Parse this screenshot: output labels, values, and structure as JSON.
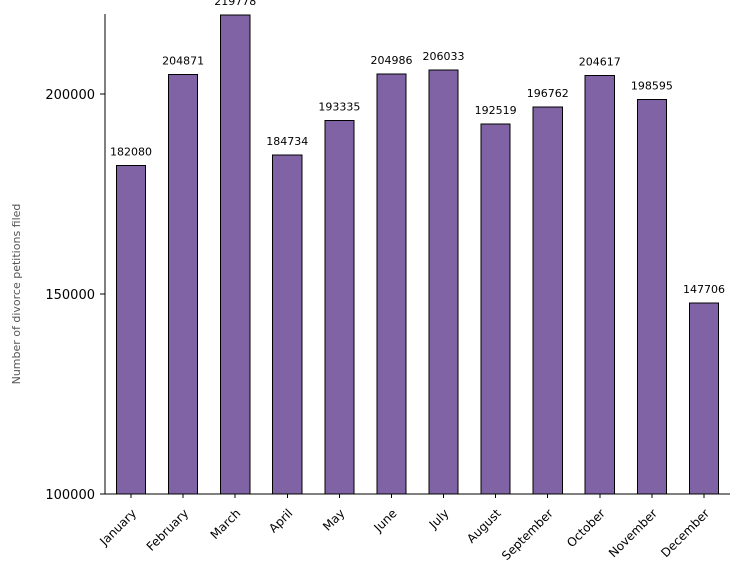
{
  "chart_data": {
    "type": "bar",
    "title": "",
    "xlabel": "",
    "ylabel": "Number of divorce petitions filed",
    "categories": [
      "January",
      "February",
      "March",
      "April",
      "May",
      "June",
      "July",
      "August",
      "September",
      "October",
      "November",
      "December"
    ],
    "values": [
      182080,
      204871,
      219778,
      184734,
      193335,
      204986,
      206033,
      192519,
      196762,
      204617,
      198595,
      147706
    ],
    "ylim": [
      100000,
      220000
    ],
    "yticks": [
      100000,
      150000,
      200000
    ],
    "ytick_labels": [
      "100000",
      "150000",
      "200000"
    ],
    "grid": false,
    "legend": "none",
    "colors": {
      "bar": "#7f63a4",
      "bar_edge": "#000000",
      "axis": "#000000"
    }
  }
}
